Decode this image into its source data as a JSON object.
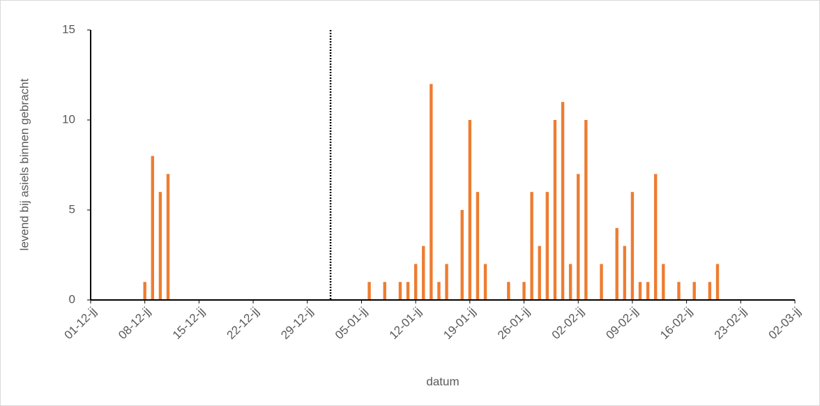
{
  "chart_data": {
    "type": "bar",
    "xlabel": "datum",
    "ylabel": "levend bij asiels binnen gebracht",
    "categories": [
      "01-12-jj",
      null,
      null,
      null,
      null,
      null,
      null,
      "08-12-jj",
      null,
      null,
      null,
      null,
      null,
      null,
      "15-12-jj",
      null,
      null,
      null,
      null,
      null,
      null,
      "22-12-jj",
      null,
      null,
      null,
      null,
      null,
      null,
      "29-12-jj",
      null,
      null,
      null,
      null,
      null,
      null,
      "05-01-jj",
      null,
      null,
      null,
      null,
      null,
      null,
      "12-01-jj",
      null,
      null,
      null,
      null,
      null,
      null,
      "19-01-jj",
      null,
      null,
      null,
      null,
      null,
      null,
      "26-01-jj",
      null,
      null,
      null,
      null,
      null,
      null,
      "02-02-jj",
      null,
      null,
      null,
      null,
      null,
      null,
      "09-02-jj",
      null,
      null,
      null,
      null,
      null,
      null,
      "16-02-jj",
      null,
      null,
      null,
      null,
      null,
      null,
      "23-02-jj",
      null,
      null,
      null,
      null,
      null,
      null,
      "02-03-jj"
    ],
    "values": [
      0,
      0,
      0,
      0,
      0,
      0,
      0,
      1,
      8,
      6,
      7,
      0,
      0,
      0,
      0,
      0,
      0,
      0,
      0,
      0,
      0,
      0,
      0,
      0,
      0,
      0,
      0,
      0,
      0,
      0,
      0,
      0,
      0,
      0,
      0,
      0,
      1,
      0,
      1,
      0,
      1,
      1,
      2,
      3,
      12,
      1,
      2,
      0,
      5,
      10,
      6,
      2,
      0,
      0,
      1,
      0,
      1,
      6,
      3,
      6,
      10,
      11,
      2,
      7,
      10,
      0,
      2,
      0,
      4,
      3,
      6,
      1,
      1,
      7,
      2,
      0,
      1,
      0,
      1,
      0,
      1,
      2,
      0,
      0,
      0,
      0,
      0,
      0,
      0,
      0,
      0,
      0
    ],
    "color": "#ed7d31",
    "vline_index": 31,
    "ylim": [
      0,
      15
    ],
    "yticks": [
      0,
      5,
      10,
      15
    ],
    "grid": false
  }
}
